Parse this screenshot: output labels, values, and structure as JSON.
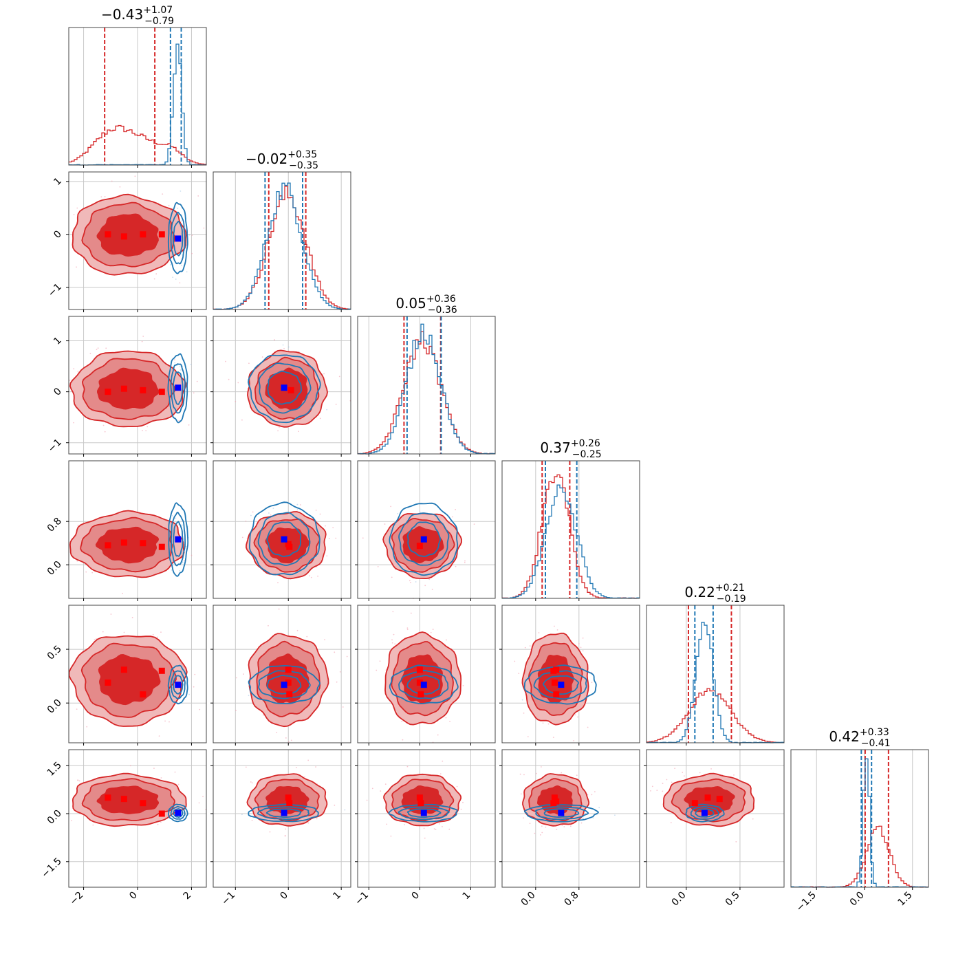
{
  "colors": {
    "primary": "#d62728",
    "secondary": "#1f77b4",
    "primary_marker": "#ff0000",
    "secondary_marker": "#0000ff",
    "grid": "#c8c8c8",
    "axes": "#444444"
  },
  "chart_data": {
    "type": "corner",
    "params": [
      {
        "range": [
          -2.55,
          2.55
        ],
        "ticks": [
          -2,
          0,
          2
        ],
        "tick_labels": [
          "−2",
          "0",
          "2"
        ],
        "title": {
          "main": "−0.43",
          "sup": "+1.07",
          "sub": "−0.79"
        },
        "quantile_lines": {
          "primary": [
            -1.22,
            0.64
          ],
          "secondary": [
            1.22,
            1.62
          ]
        },
        "hist": {
          "primary": {
            "mode": "bimodal_broad",
            "peak": 0.22
          },
          "secondary": {
            "center": 1.48,
            "sigma": 0.15,
            "peak": 0.92
          }
        }
      },
      {
        "range": [
          -1.42,
          1.18
        ],
        "ticks": [
          -1,
          0,
          1
        ],
        "tick_labels": [
          "−1",
          "0",
          "1"
        ],
        "title": {
          "main": "−0.02",
          "sup": "+0.35",
          "sub": "−0.35"
        },
        "quantile_lines": {
          "primary": [
            -0.37,
            0.33
          ],
          "secondary": [
            -0.44,
            0.27
          ]
        },
        "hist": {
          "primary": {
            "center": -0.02,
            "sigma": 0.35,
            "peak": 0.83
          },
          "secondary": {
            "center": -0.07,
            "sigma": 0.33,
            "peak": 0.88
          }
        }
      },
      {
        "range": [
          -1.22,
          1.48
        ],
        "ticks": [
          -1,
          0,
          1
        ],
        "tick_labels": [
          "−1",
          "0",
          "1"
        ],
        "title": {
          "main": "0.05",
          "sup": "+0.36",
          "sub": "−0.36"
        },
        "quantile_lines": {
          "primary": [
            -0.31,
            0.41
          ],
          "secondary": [
            -0.25,
            0.42
          ]
        },
        "hist": {
          "primary": {
            "center": 0.05,
            "sigma": 0.36,
            "peak": 0.83
          },
          "secondary": {
            "center": 0.08,
            "sigma": 0.33,
            "peak": 0.9
          }
        }
      },
      {
        "range": [
          -0.62,
          1.92
        ],
        "ticks": [
          0.0,
          0.8
        ],
        "tick_labels": [
          "0.0",
          "0.8"
        ],
        "title": {
          "main": "0.37",
          "sup": "+0.26",
          "sub": "−0.25"
        },
        "quantile_lines": {
          "primary": [
            0.12,
            0.63
          ],
          "secondary": [
            0.18,
            0.76
          ]
        },
        "hist": {
          "primary": {
            "center": 0.37,
            "sigma": 0.25,
            "peak": 0.93
          },
          "secondary": {
            "center": 0.47,
            "sigma": 0.28,
            "peak": 0.83
          }
        }
      },
      {
        "range": [
          -0.37,
          0.91
        ],
        "ticks": [
          0.0,
          0.5
        ],
        "tick_labels": [
          "0.0",
          "0.5"
        ],
        "title": {
          "main": "0.22",
          "sup": "+0.21",
          "sub": "−0.19"
        },
        "quantile_lines": {
          "primary": [
            0.02,
            0.42
          ],
          "secondary": [
            0.08,
            0.25
          ]
        },
        "hist": {
          "primary": {
            "center": 0.22,
            "sigma": 0.2,
            "peak": 0.37
          },
          "secondary": {
            "center": 0.17,
            "sigma": 0.08,
            "peak": 0.9
          }
        }
      },
      {
        "range": [
          -2.3,
          2.0
        ],
        "ticks": [
          -1.5,
          0.0,
          1.5
        ],
        "tick_labels": [
          "−1.5",
          "0.0",
          "1.5"
        ],
        "title": {
          "main": "0.42",
          "sup": "+0.33",
          "sub": "−0.41"
        },
        "quantile_lines": {
          "primary": [
            0.02,
            0.75
          ],
          "secondary": [
            -0.1,
            0.22
          ]
        },
        "hist": {
          "primary": {
            "center": 0.42,
            "sigma": 0.36,
            "peak": 0.42
          },
          "secondary": {
            "center": 0.06,
            "sigma": 0.1,
            "peak": 0.92
          }
        }
      }
    ],
    "secondary_centers": [
      1.5,
      -0.08,
      0.08,
      0.47,
      0.17,
      0.02
    ],
    "secondary_spread": [
      0.16,
      0.3,
      0.3,
      0.3,
      0.08,
      0.12
    ],
    "primary_spread": [
      1.05,
      0.37,
      0.37,
      0.3,
      0.21,
      0.4
    ],
    "markers": {
      "primary": [
        {
          "i": 1,
          "j": 0,
          "pts": [
            [
              -1.1,
              0.0
            ],
            [
              -0.5,
              -0.04
            ],
            [
              0.2,
              0.0
            ],
            [
              0.9,
              0.0
            ]
          ]
        },
        {
          "i": 2,
          "j": 0,
          "pts": [
            [
              -1.1,
              0.0
            ],
            [
              -0.5,
              0.06
            ],
            [
              0.2,
              0.03
            ],
            [
              0.9,
              0.0
            ]
          ]
        },
        {
          "i": 2,
          "j": 1,
          "pts": [
            [
              0.05,
              0.03
            ]
          ]
        },
        {
          "i": 3,
          "j": 0,
          "pts": [
            [
              -1.1,
              0.36
            ],
            [
              -0.5,
              0.41
            ],
            [
              0.2,
              0.4
            ],
            [
              0.9,
              0.33
            ]
          ]
        },
        {
          "i": 3,
          "j": 1,
          "pts": [
            [
              0.0,
              0.38
            ],
            [
              0.02,
              0.33
            ]
          ]
        },
        {
          "i": 3,
          "j": 2,
          "pts": [
            [
              0.0,
              0.35
            ]
          ]
        },
        {
          "i": 4,
          "j": 0,
          "pts": [
            [
              -1.1,
              0.19
            ],
            [
              -0.5,
              0.31
            ],
            [
              0.2,
              0.08
            ],
            [
              0.9,
              0.3
            ]
          ]
        },
        {
          "i": 4,
          "j": 1,
          "pts": [
            [
              0.0,
              0.31
            ],
            [
              0.0,
              0.19
            ],
            [
              0.02,
              0.08
            ]
          ]
        },
        {
          "i": 4,
          "j": 2,
          "pts": [
            [
              0.0,
              0.31
            ],
            [
              0.0,
              0.19
            ],
            [
              0.02,
              0.08
            ]
          ]
        },
        {
          "i": 4,
          "j": 3,
          "pts": [
            [
              0.33,
              0.3
            ],
            [
              0.38,
              0.31
            ],
            [
              0.35,
              0.19
            ],
            [
              0.38,
              0.08
            ]
          ]
        },
        {
          "i": 5,
          "j": 0,
          "pts": [
            [
              -1.1,
              0.5
            ],
            [
              -0.5,
              0.46
            ],
            [
              0.2,
              0.33
            ],
            [
              0.9,
              0.0
            ]
          ]
        },
        {
          "i": 5,
          "j": 1,
          "pts": [
            [
              0.0,
              0.5
            ],
            [
              0.02,
              0.33
            ]
          ]
        },
        {
          "i": 5,
          "j": 2,
          "pts": [
            [
              0.0,
              0.5
            ],
            [
              0.02,
              0.33
            ]
          ]
        },
        {
          "i": 5,
          "j": 3,
          "pts": [
            [
              0.35,
              0.5
            ],
            [
              0.33,
              0.33
            ],
            [
              0.38,
              0.38
            ]
          ]
        },
        {
          "i": 5,
          "j": 4,
          "pts": [
            [
              0.08,
              0.33
            ],
            [
              0.2,
              0.5
            ],
            [
              0.31,
              0.46
            ]
          ]
        }
      ]
    }
  }
}
